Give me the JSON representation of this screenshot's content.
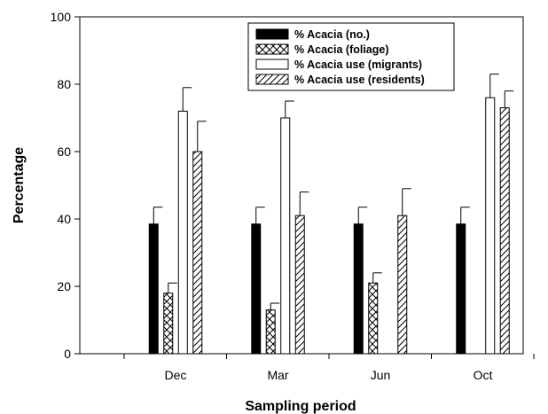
{
  "chart_data": {
    "type": "bar",
    "title": "",
    "xlabel": "Sampling period",
    "ylabel": "Percentage",
    "ylim": [
      0,
      100
    ],
    "yticks": [
      0,
      20,
      40,
      60,
      80,
      100
    ],
    "grid": false,
    "legend_position": "top-center",
    "categories": [
      "Dec",
      "Mar",
      "Jun",
      "Oct"
    ],
    "series": [
      {
        "name": "% Acacia (no.)",
        "pattern": "solid",
        "values": [
          38.5,
          38.5,
          38.5,
          38.5
        ],
        "errors": [
          5,
          5,
          5,
          5
        ]
      },
      {
        "name": "% Acacia (foliage)",
        "pattern": "crosshatch",
        "values": [
          18,
          13,
          21,
          null
        ],
        "errors": [
          3,
          2,
          3,
          null
        ]
      },
      {
        "name": "% Acacia use (migrants)",
        "pattern": "open",
        "values": [
          72,
          70,
          null,
          76
        ],
        "errors": [
          7,
          5,
          null,
          7
        ]
      },
      {
        "name": "% Acacia use (residents)",
        "pattern": "diagonal",
        "values": [
          60,
          41,
          41,
          73
        ],
        "errors": [
          9,
          7,
          8,
          5
        ]
      }
    ]
  }
}
